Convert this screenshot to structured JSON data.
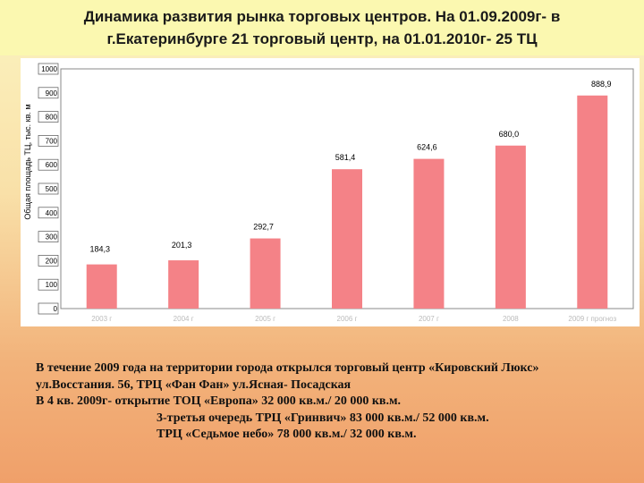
{
  "title": "Динамика развития рынка торговых центров. На 01.09.2009г- в\nг.Екатеринбурге 21 торговый центр, на 01.01.2010г- 25 ТЦ",
  "chart_data": {
    "type": "bar",
    "ylabel": "Общая площадь ТЦ, тыс. кв. м",
    "ylim": [
      0,
      1000
    ],
    "yticks": [
      "0",
      "100",
      "200",
      "300",
      "400",
      "500",
      "600",
      "700",
      "800",
      "900",
      "1000"
    ],
    "categories": [
      "2003 г",
      "2004 г",
      "2005 г",
      "2006 г",
      "2007 г",
      "2008",
      "2009 г прогноз"
    ],
    "values": [
      184.3,
      201.3,
      292.7,
      581.4,
      624.6,
      680.0,
      888.9
    ],
    "value_labels": [
      "184,3",
      "201,3",
      "292,7",
      "581,4",
      "624,6",
      "680,0",
      "888,9"
    ],
    "bar_color": "#f48287",
    "grid": false,
    "legend": "none"
  },
  "body": {
    "lines": [
      "В течение 2009 года на территории города открылся торговый центр «Кировский Люкс»",
      "ул.Восстания. 56, ТРЦ «Фан Фан» ул.Ясная- Посадская",
      "В 4 кв. 2009г- открытие ТОЦ «Европа» 32 000 кв.м./ 20 000 кв.м.",
      "3-третья очередь ТРЦ «Гринвич» 83 000 кв.м./ 52 000 кв.м.",
      "ТРЦ «Седьмое небо» 78 000 кв.м./ 32 000 кв.м."
    ]
  }
}
